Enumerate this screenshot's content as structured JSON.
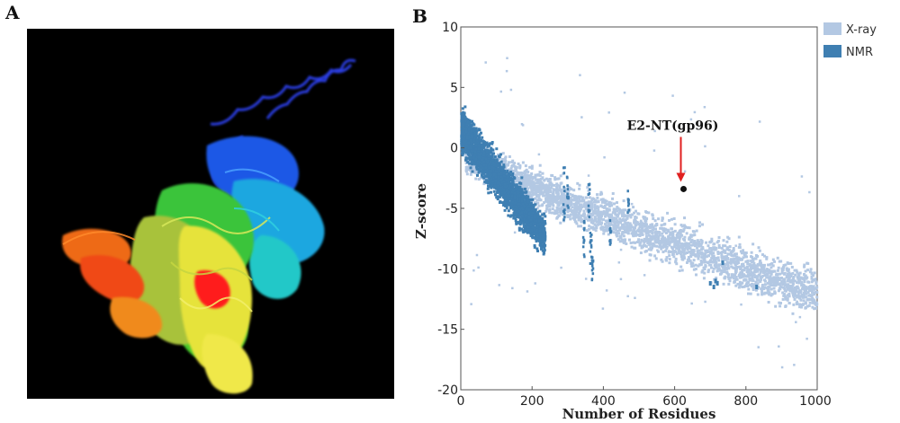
{
  "panels": {
    "a_label": "A",
    "b_label": "B"
  },
  "colors": {
    "xray": "#b3c8e3",
    "nmr": "#3f7fb2",
    "arrow": "#e02020",
    "point": "#111111"
  },
  "chart_data": {
    "type": "scatter",
    "xlabel": "Number of Residues",
    "ylabel": "Z-score",
    "xlim": [
      0,
      1000
    ],
    "ylim": [
      -20,
      10
    ],
    "xticks": [
      0,
      200,
      400,
      600,
      800,
      1000
    ],
    "yticks": [
      10,
      5,
      0,
      -5,
      -10,
      -15,
      -20
    ],
    "legend": {
      "position": "top-right-outside",
      "entries": [
        "X-ray",
        "NMR"
      ]
    },
    "series": [
      {
        "name": "X-ray",
        "description_band": "dense cloud descending from ~0 at 20 residues to ~-12 at 1000 residues"
      },
      {
        "name": "NMR",
        "description_band": "dense band descending from ~2 at 0 residues to ~-8 at 250 residues"
      }
    ],
    "highlight": {
      "label": "E2-NT(gp96)",
      "x": 625,
      "y": -3.4
    }
  }
}
